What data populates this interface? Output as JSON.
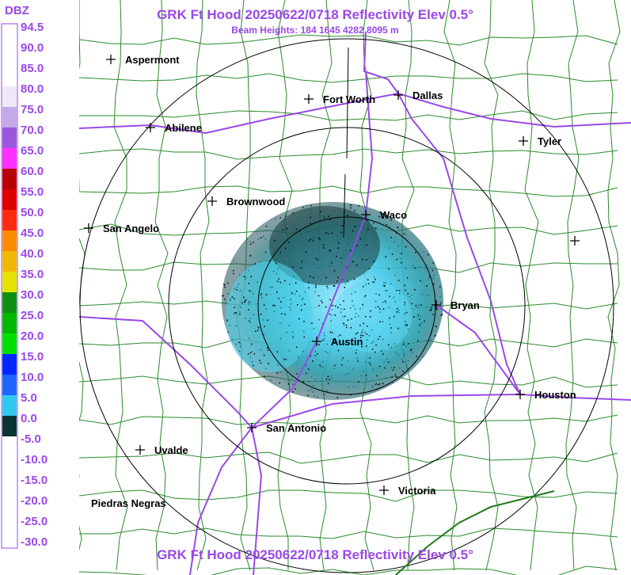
{
  "header": {
    "title": "GRK Ft Hood 20250622/0718 Reflectivity Elev 0.5°",
    "subtitle": "Beam Heights: 184 1645 4282 8095 m",
    "footer": "GRK Ft Hood 20250622/0718 Reflectivity Elev 0.5°"
  },
  "legend": {
    "title": "DBZ",
    "labels": [
      "94.5",
      "90.0",
      "85.0",
      "80.0",
      "75.0",
      "70.0",
      "65.0",
      "60.0",
      "55.0",
      "50.0",
      "45.0",
      "40.0",
      "35.0",
      "30.0",
      "25.0",
      "20.0",
      "15.0",
      "10.0",
      "5.0",
      "0.0",
      "-5.0",
      "-10.0",
      "-15.0",
      "-20.0",
      "-25.0",
      "-30.0"
    ],
    "colors": [
      "#ffffff",
      "#ffffff",
      "#ffffff",
      "#efe8f8",
      "#c4a8e8",
      "#9a58e0",
      "#ff30ff",
      "#b80000",
      "#dc0000",
      "#ff2a10",
      "#ff8c00",
      "#f0b800",
      "#e4e400",
      "#109010",
      "#00b800",
      "#00e000",
      "#0028ff",
      "#1e64ff",
      "#30c8f0",
      "#0c3434",
      "#ffffff",
      "#ffffff",
      "#ffffff",
      "#ffffff",
      "#ffffff",
      "#ffffff"
    ]
  },
  "cities": [
    "Aspermont",
    "Fort Worth",
    "Dallas",
    "Abilene",
    "Tyler",
    "Brownwood",
    "Waco",
    "San Angelo",
    "Bryan",
    "Austin",
    "Houston",
    "San Antonio",
    "Uvalde",
    "Victoria",
    "Piedras Negras"
  ]
}
